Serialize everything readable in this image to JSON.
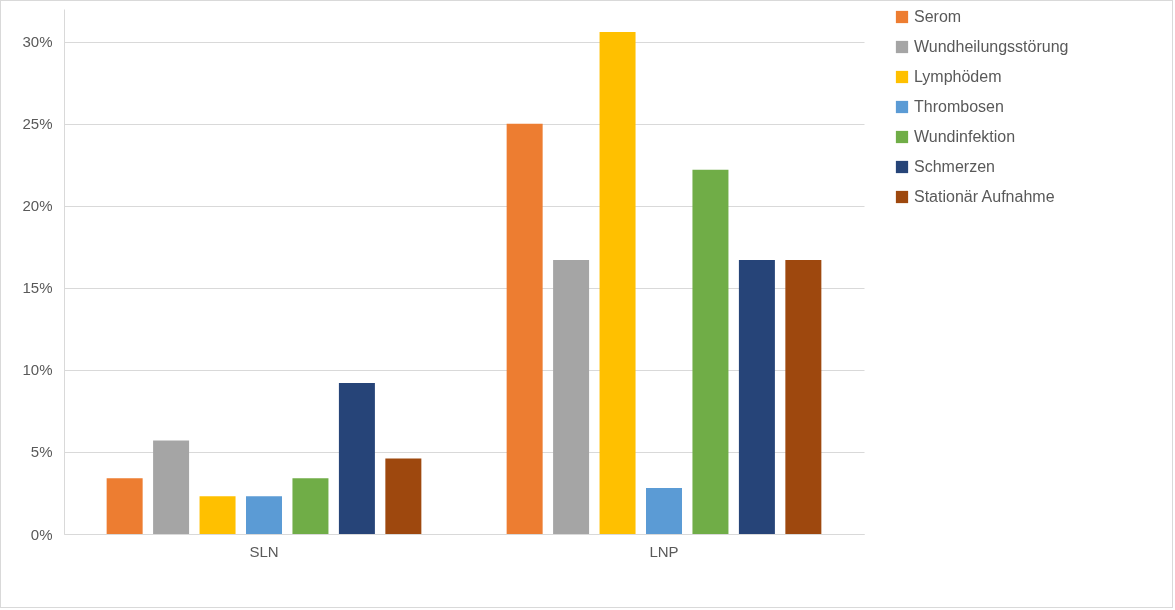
{
  "chart_data": {
    "type": "bar",
    "categories": [
      "SLN",
      "LNP"
    ],
    "series": [
      {
        "name": "Serom",
        "color": "#ed7d31",
        "values": [
          3.4,
          25.0
        ]
      },
      {
        "name": "Wundheilungsstörung",
        "color": "#a5a5a5",
        "values": [
          5.7,
          16.7
        ]
      },
      {
        "name": "Lymphödem",
        "color": "#ffc000",
        "values": [
          2.3,
          30.6
        ]
      },
      {
        "name": "Thrombosen",
        "color": "#5b9bd5",
        "values": [
          2.3,
          2.8
        ]
      },
      {
        "name": "Wundinfektion",
        "color": "#70ad47",
        "values": [
          3.4,
          22.2
        ]
      },
      {
        "name": "Schmerzen",
        "color": "#264478",
        "values": [
          9.2,
          16.7
        ]
      },
      {
        "name": "Stationär Aufnahme",
        "color": "#9e480e",
        "values": [
          4.6,
          16.7
        ]
      }
    ],
    "ylim": [
      0,
      32
    ],
    "yticks": [
      {
        "value": 0,
        "label": "0%"
      },
      {
        "value": 5,
        "label": "5%"
      },
      {
        "value": 10,
        "label": "10%"
      },
      {
        "value": 15,
        "label": "15%"
      },
      {
        "value": 20,
        "label": "20%"
      },
      {
        "value": 25,
        "label": "25%"
      },
      {
        "value": 30,
        "label": "30%"
      }
    ],
    "grid": "y",
    "legend": "right"
  }
}
